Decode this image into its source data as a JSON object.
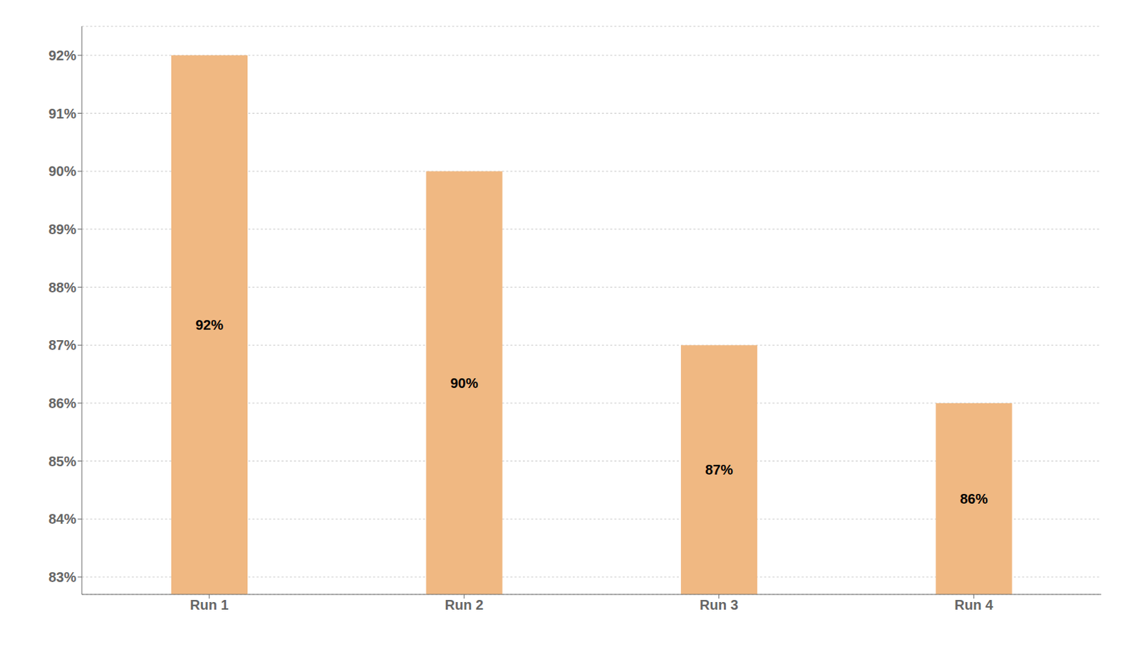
{
  "chart_data": {
    "type": "bar",
    "categories": [
      "Run 1",
      "Run 2",
      "Run 3",
      "Run 4"
    ],
    "values": [
      92,
      90,
      87,
      86
    ],
    "value_labels": [
      "92%",
      "90%",
      "87%",
      "86%"
    ],
    "data_labels": true,
    "color": "#F0B882",
    "ylim": [
      82.7,
      92.5
    ],
    "yticks": [
      {
        "value": 83,
        "label": "83%"
      },
      {
        "value": 84,
        "label": "84%"
      },
      {
        "value": 85,
        "label": "85%"
      },
      {
        "value": 86,
        "label": "86%"
      },
      {
        "value": 87,
        "label": "87%"
      },
      {
        "value": 88,
        "label": "88%"
      },
      {
        "value": 89,
        "label": "89%"
      },
      {
        "value": 90,
        "label": "90%"
      },
      {
        "value": 91,
        "label": "91%"
      },
      {
        "value": 92,
        "label": "92%"
      }
    ],
    "grid": true
  }
}
